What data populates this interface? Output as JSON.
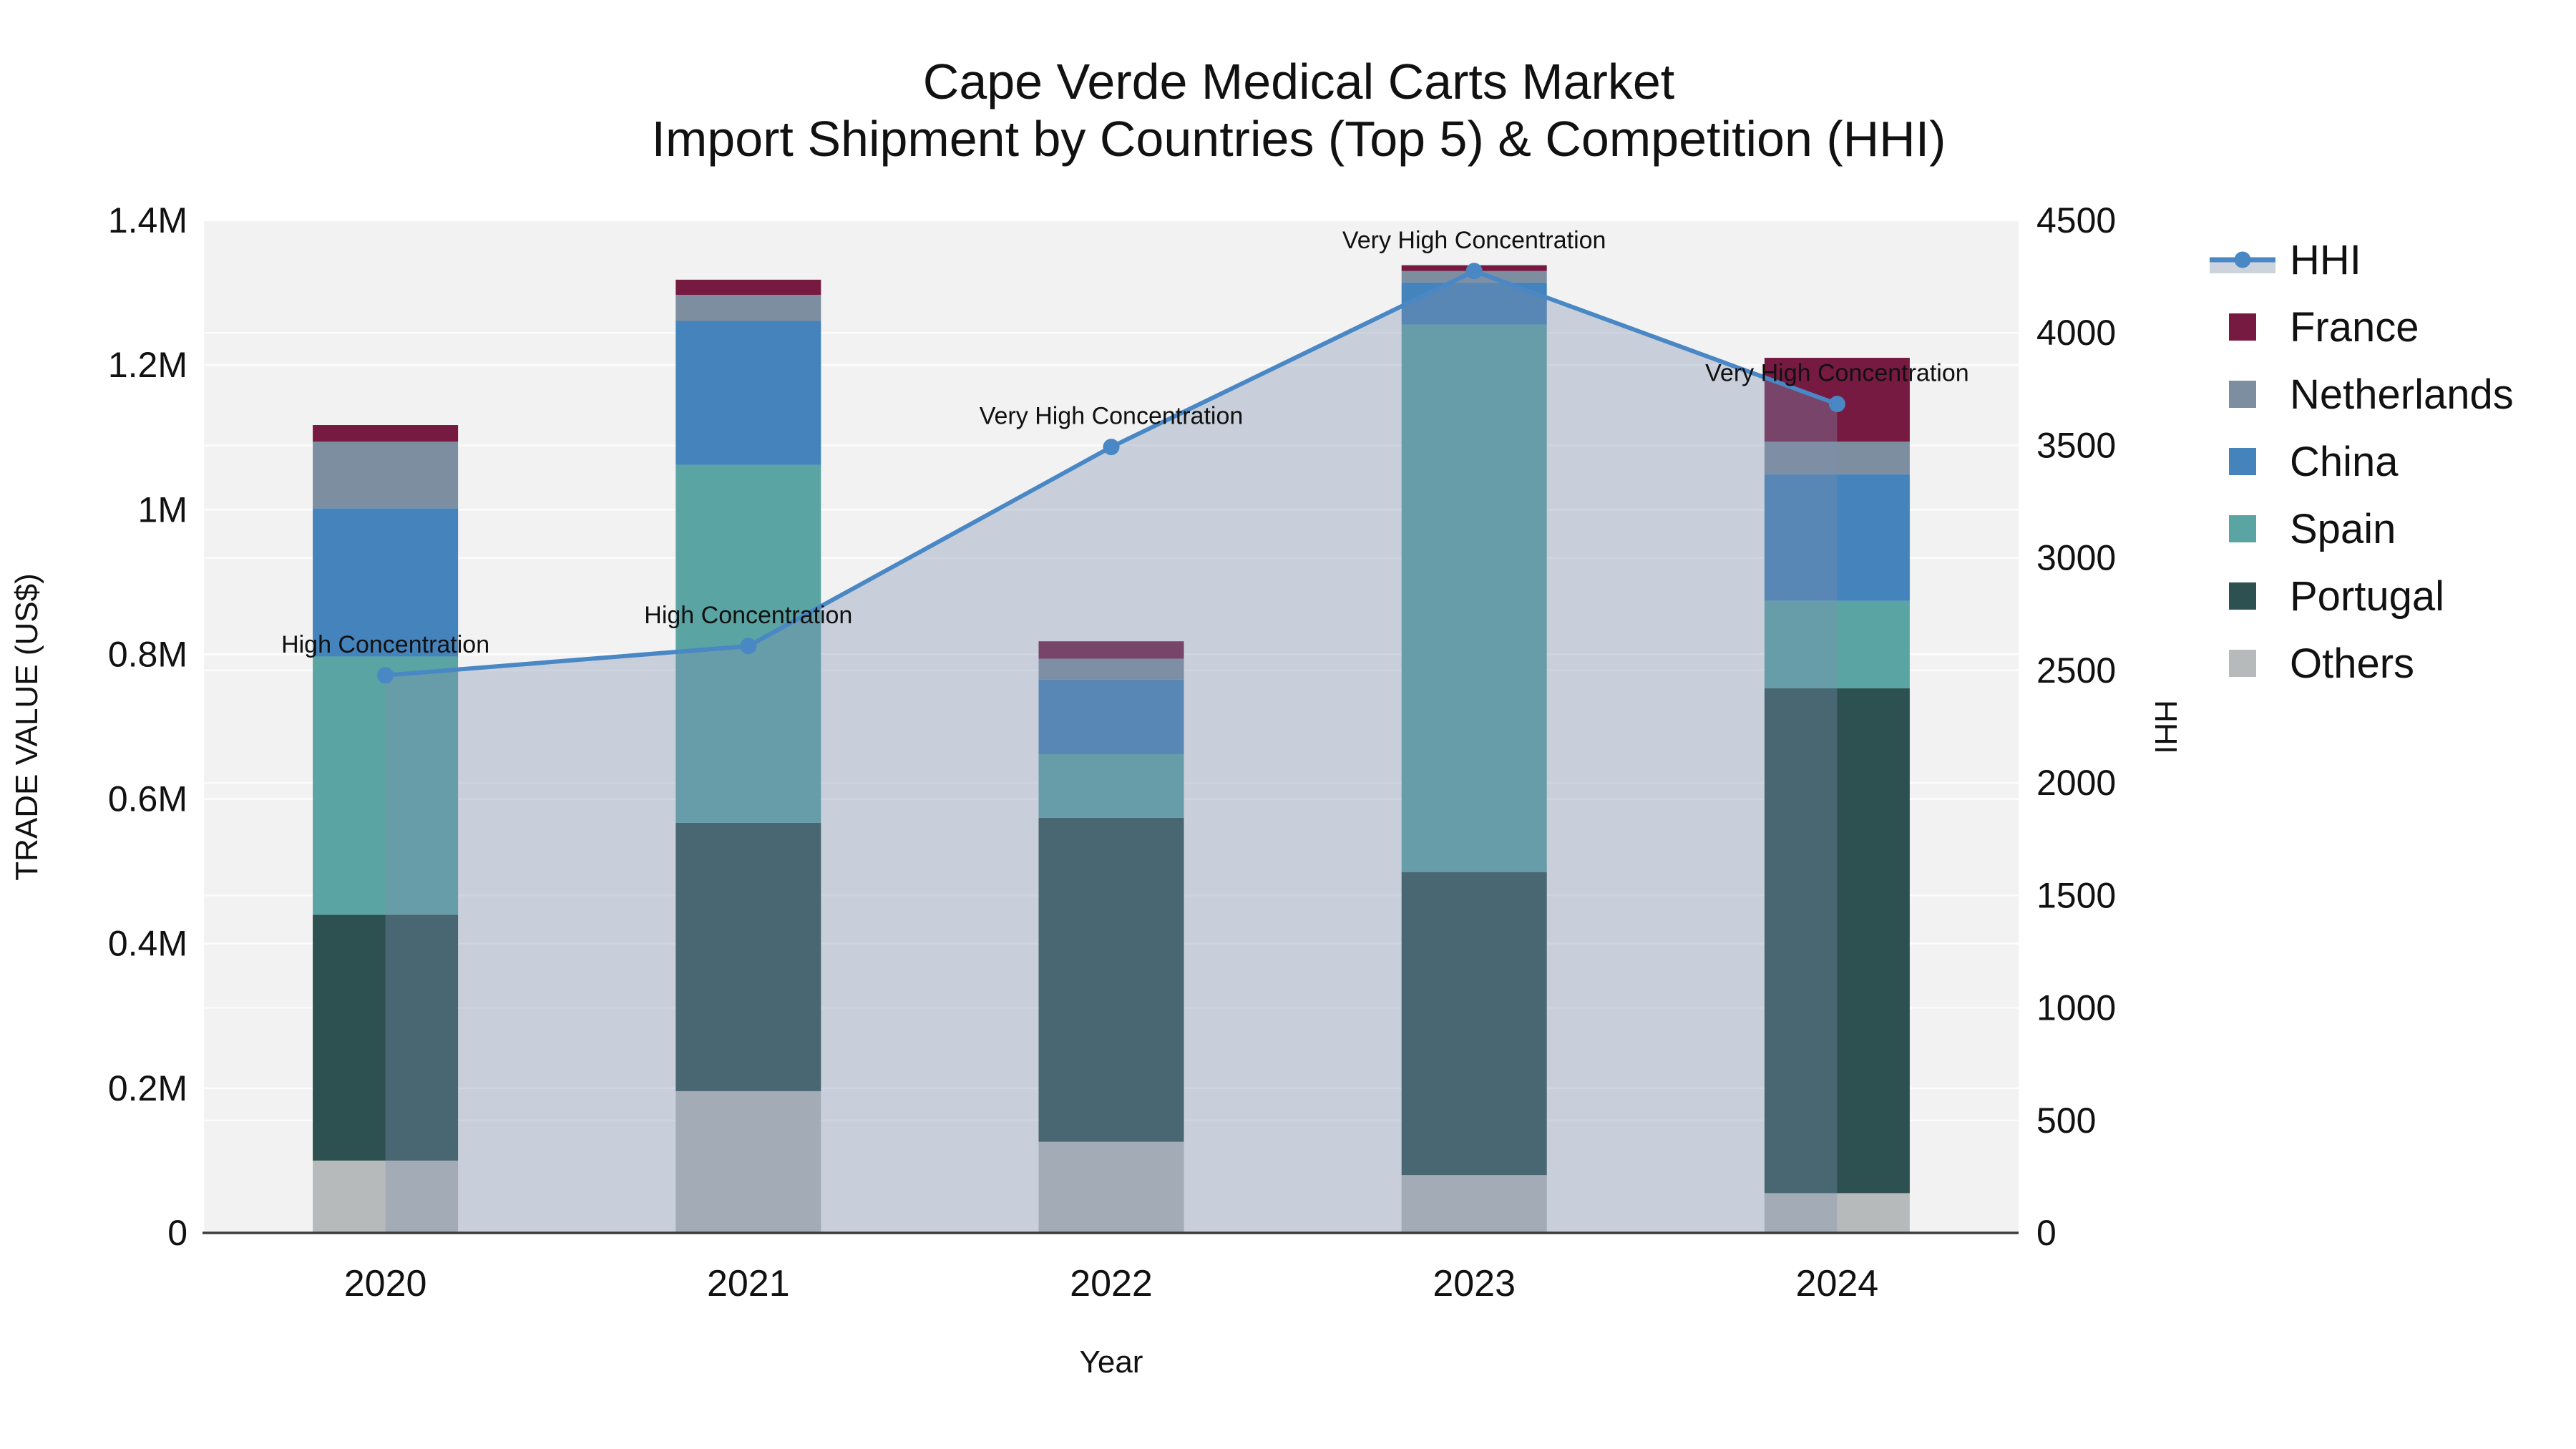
{
  "title": {
    "line1": "Cape Verde Medical Carts Market",
    "line2": "Import Shipment by Countries (Top 5) & Competition (HHI)"
  },
  "colors": {
    "France": "#761a42",
    "Netherlands": "#7d8ea0",
    "China": "#4483bb",
    "Spain": "#5ba4a4",
    "Portugal": "#2d5150",
    "Others": "#b7babb",
    "hhi_line": "#4987c5",
    "area_fill": "rgba(125,143,175,0.36)",
    "plot_background": "#f2f2f2",
    "gridline": "#ffffff",
    "axis_line": "#3d3d3d",
    "text": "#111111",
    "legend_band": "#ccd3dd"
  },
  "legend": {
    "items": [
      {
        "label": "HHI",
        "type": "line"
      },
      {
        "label": "France",
        "type": "swatch"
      },
      {
        "label": "Netherlands",
        "type": "swatch"
      },
      {
        "label": "China",
        "type": "swatch"
      },
      {
        "label": "Spain",
        "type": "swatch"
      },
      {
        "label": "Portugal",
        "type": "swatch"
      },
      {
        "label": "Others",
        "type": "swatch"
      }
    ]
  },
  "chart_data": {
    "type": "combo (stacked bar + line)",
    "categories": [
      "2020",
      "2021",
      "2022",
      "2023",
      "2024"
    ],
    "series": [
      {
        "name": "Others",
        "axis": "left",
        "values": [
          100000,
          196000,
          126000,
          80000,
          55000
        ]
      },
      {
        "name": "Portugal",
        "axis": "left",
        "values": [
          340000,
          371000,
          448000,
          419000,
          698000
        ]
      },
      {
        "name": "Spain",
        "axis": "left",
        "values": [
          357000,
          495000,
          88000,
          757000,
          121000
        ]
      },
      {
        "name": "China",
        "axis": "left",
        "values": [
          205000,
          199000,
          103000,
          58000,
          175000
        ]
      },
      {
        "name": "Netherlands",
        "axis": "left",
        "values": [
          92000,
          36000,
          29000,
          16000,
          45000
        ]
      },
      {
        "name": "France",
        "axis": "left",
        "values": [
          23000,
          21000,
          24000,
          8000,
          116000
        ]
      }
    ],
    "bar_totals": [
      1117000,
      1318000,
      818000,
      1338000,
      1210000
    ],
    "line_series": {
      "name": "HHI",
      "axis": "right",
      "values": [
        2478,
        2608,
        3493,
        4275,
        3684
      ],
      "has_area_fill": true
    },
    "annotations": [
      {
        "category": "2020",
        "text": "High Concentration"
      },
      {
        "category": "2021",
        "text": "High Concentration"
      },
      {
        "category": "2022",
        "text": "Very High Concentration"
      },
      {
        "category": "2023",
        "text": "Very High Concentration"
      },
      {
        "category": "2024",
        "text": "Very High Concentration"
      }
    ],
    "xlabel": "Year",
    "y_left": {
      "label": "TRADE VALUE (US$)",
      "range": [
        0,
        1400000
      ],
      "tick_values": [
        0,
        200000,
        400000,
        600000,
        800000,
        1000000,
        1200000,
        1400000
      ],
      "tick_labels": [
        "0",
        "0.2M",
        "0.4M",
        "0.6M",
        "0.8M",
        "1M",
        "1.2M",
        "1.4M"
      ]
    },
    "y_right": {
      "label": "HHI",
      "range": [
        0,
        4500
      ],
      "tick_values": [
        0,
        500,
        1000,
        1500,
        2000,
        2500,
        3000,
        3500,
        4000,
        4500
      ],
      "tick_labels": [
        "0",
        "500",
        "1000",
        "1500",
        "2000",
        "2500",
        "3000",
        "3500",
        "4000",
        "4500"
      ]
    },
    "grid": true,
    "legend_position": "right"
  }
}
